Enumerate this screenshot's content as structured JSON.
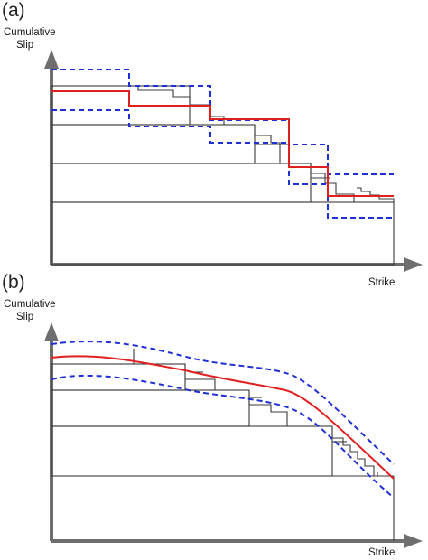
{
  "panels": [
    {
      "label": "(a)",
      "y_axis_label_line1": "Cumulative",
      "y_axis_label_line2": "Slip",
      "x_axis_label": "Strike"
    },
    {
      "label": "(b)",
      "y_axis_label_line1": "Cumulative",
      "y_axis_label_line2": "Slip",
      "x_axis_label": "Strike"
    }
  ],
  "colors": {
    "axis": "#6e6e6e",
    "blocks": "#3a3a3a",
    "mean_line": "#e02020",
    "bounds_line": "#1f2fd6"
  }
}
